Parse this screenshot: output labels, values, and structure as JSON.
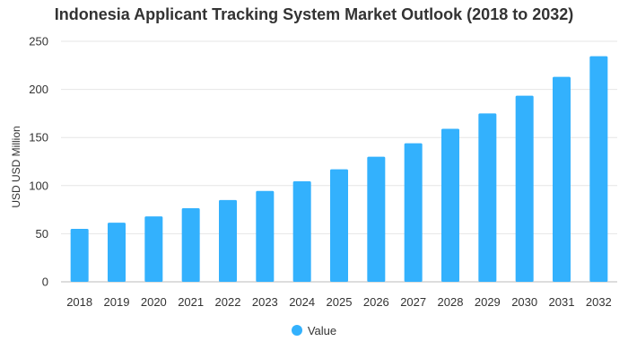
{
  "chart_data": {
    "type": "bar",
    "title": "Indonesia Applicant Tracking System Market Outlook (2018 to 2032)",
    "xlabel": "",
    "ylabel": "USD USD Million",
    "categories": [
      "2018",
      "2019",
      "2020",
      "2021",
      "2022",
      "2023",
      "2024",
      "2025",
      "2026",
      "2027",
      "2028",
      "2029",
      "2030",
      "2031",
      "2032"
    ],
    "series": [
      {
        "name": "Value",
        "values": [
          55,
          61.5,
          68,
          76.5,
          85,
          94.5,
          104.5,
          117,
          130,
          144,
          159,
          175,
          193.5,
          213,
          234.5
        ]
      }
    ],
    "ylim": [
      0,
      250
    ],
    "yticks": [
      0,
      50,
      100,
      150,
      200,
      250
    ],
    "grid": true,
    "legend_position": "bottom",
    "colors": {
      "bar": "#33b1fd",
      "grid": "#e6e6e6",
      "axis": "#bbbbbb"
    }
  }
}
